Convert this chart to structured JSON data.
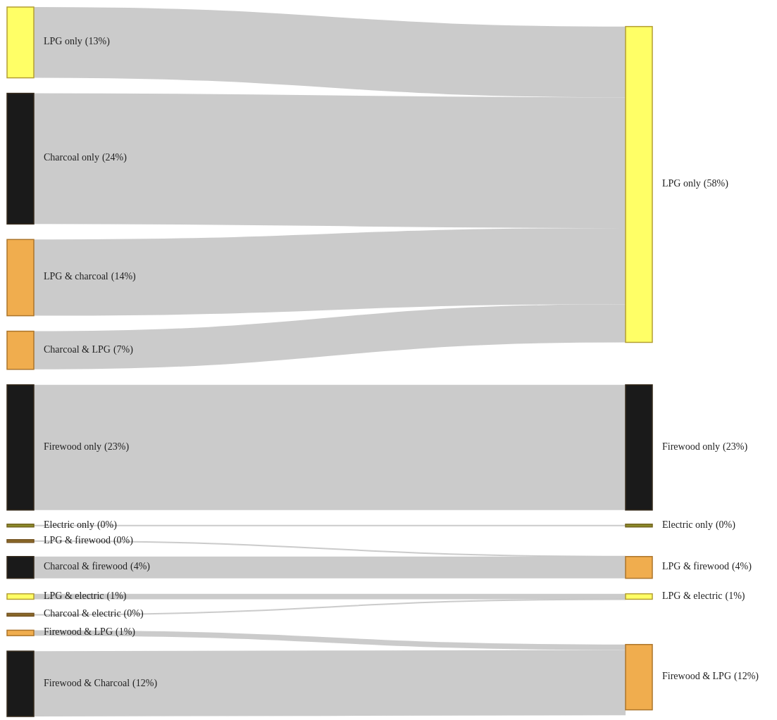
{
  "chart_data": {
    "type": "other",
    "categories": [
      "LPG only",
      "Charcoal only",
      "LPG & charcoal",
      "Charcoal & LPG",
      "Firewood only",
      "Electric only",
      "LPG & firewood",
      "Charcoal & firewood",
      "LPG & electric",
      "Charcoal & electric",
      "Firewood & LPG",
      "Firewood & Charcoal",
      "LPG only",
      "Firewood only",
      "Electric only",
      "LPG & firewood",
      "LPG & electric",
      "Firewood & LPG"
    ],
    "value_labels": [
      "(13%)",
      "(24%)",
      "(14%)",
      "(7%)",
      "(23%)",
      "(0%)",
      "(0%)",
      "(4%)",
      "(1%)",
      "(0%)",
      "(1%)",
      "(12%)",
      "(58%)",
      "(23%)",
      "(0%)",
      "(4%)",
      "(1%)",
      "(12%)"
    ],
    "values": [
      13,
      24,
      14,
      7,
      23,
      0,
      0,
      4,
      1,
      0,
      1,
      12,
      58,
      23,
      0,
      4,
      1,
      12
    ],
    "colors": [
      "#ffff66",
      "#1a1a1a",
      "#f0ad4e",
      "#f0ad4e",
      "#1a1a1a",
      "#8b8b2a",
      "#8b6a2a",
      "#1a1a1a",
      "#ffff66",
      "#8b6a2a",
      "#f0ad4e",
      "#1a1a1a",
      "#ffff66",
      "#1a1a1a",
      "#8b8b2a",
      "#f0ad4e",
      "#ffff66",
      "#f0ad4e"
    ],
    "cells": [
      [
        true,
        null,
        null,
        null,
        null,
        null
      ],
      [
        true,
        null,
        null,
        null,
        null,
        null
      ],
      [
        true,
        null,
        null,
        null,
        null,
        null
      ],
      [
        true,
        null,
        null,
        null,
        null,
        null
      ],
      [
        null,
        true,
        null,
        null,
        null,
        null
      ],
      [
        null,
        null,
        true,
        null,
        null,
        null
      ],
      [
        null,
        null,
        null,
        true,
        null,
        null
      ],
      [
        null,
        null,
        null,
        true,
        null,
        null
      ],
      [
        null,
        null,
        null,
        null,
        true,
        null
      ],
      [
        null,
        null,
        null,
        null,
        true,
        null
      ],
      [
        null,
        null,
        null,
        null,
        null,
        true
      ],
      [
        null,
        null,
        null,
        null,
        null,
        true
      ]
    ]
  }
}
